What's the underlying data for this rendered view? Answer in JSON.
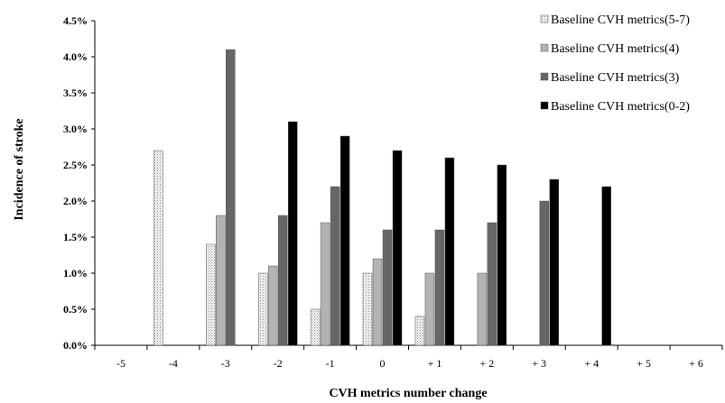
{
  "chart_data": {
    "type": "bar",
    "xlabel": "CVH metrics number change",
    "ylabel": "Incidence of stroke",
    "ylim": [
      0,
      4.5
    ],
    "yticks": [
      "0.0%",
      "0.5%",
      "1.0%",
      "1.5%",
      "2.0%",
      "2.5%",
      "3.0%",
      "3.5%",
      "4.0%",
      "4.5%"
    ],
    "categories": [
      "-5",
      "-4",
      "-3",
      "-2",
      "-1",
      "0",
      "+ 1",
      "+ 2",
      "+ 3",
      "+ 4",
      "+ 5",
      "+ 6"
    ],
    "legend_position": "top-right",
    "grid": false,
    "series": [
      {
        "name": "Baseline CVH metrics(5-7)",
        "color": "#f2f2f2",
        "pattern": "dotted",
        "values": [
          null,
          2.7,
          1.4,
          1.0,
          0.5,
          1.0,
          0.4,
          null,
          null,
          null,
          null,
          null
        ]
      },
      {
        "name": "Baseline CVH metrics(4)",
        "color": "#b3b3b3",
        "values": [
          null,
          null,
          1.8,
          1.1,
          1.7,
          1.2,
          1.0,
          1.0,
          null,
          null,
          null,
          null
        ]
      },
      {
        "name": "Baseline CVH metrics(3)",
        "color": "#666666",
        "values": [
          null,
          null,
          4.1,
          1.8,
          2.2,
          1.6,
          1.6,
          1.7,
          2.0,
          null,
          null,
          null
        ]
      },
      {
        "name": "Baseline CVH metrics(0-2)",
        "color": "#000000",
        "values": [
          null,
          null,
          null,
          3.1,
          2.9,
          2.7,
          2.6,
          2.5,
          2.3,
          2.2,
          null,
          null
        ]
      }
    ]
  }
}
